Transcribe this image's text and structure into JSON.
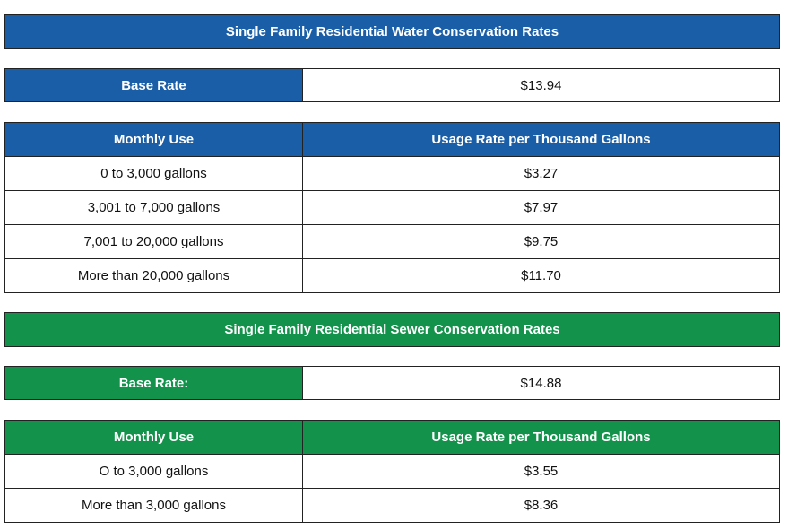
{
  "water": {
    "title": "Single Family Residential Water Conservation Rates",
    "base_rate": {
      "label": "Base Rate",
      "value": "$13.94"
    },
    "table": {
      "header": [
        "Monthly Use",
        "Usage Rate per Thousand Gallons"
      ],
      "rows": [
        [
          "0 to 3,000 gallons",
          "$3.27"
        ],
        [
          "3,001 to 7,000 gallons",
          "$7.97"
        ],
        [
          "7,001 to 20,000 gallons",
          "$9.75"
        ],
        [
          "More than 20,000 gallons",
          "$11.70"
        ]
      ]
    }
  },
  "sewer": {
    "title": "Single Family Residential Sewer Conservation Rates",
    "base_rate": {
      "label": "Base Rate:",
      "value": "$14.88"
    },
    "table": {
      "header": [
        "Monthly Use",
        "Usage Rate per Thousand Gallons"
      ],
      "rows": [
        [
          "O to 3,000 gallons",
          "$3.55"
        ],
        [
          "More than 3,000 gallons",
          "$8.36"
        ]
      ]
    }
  }
}
